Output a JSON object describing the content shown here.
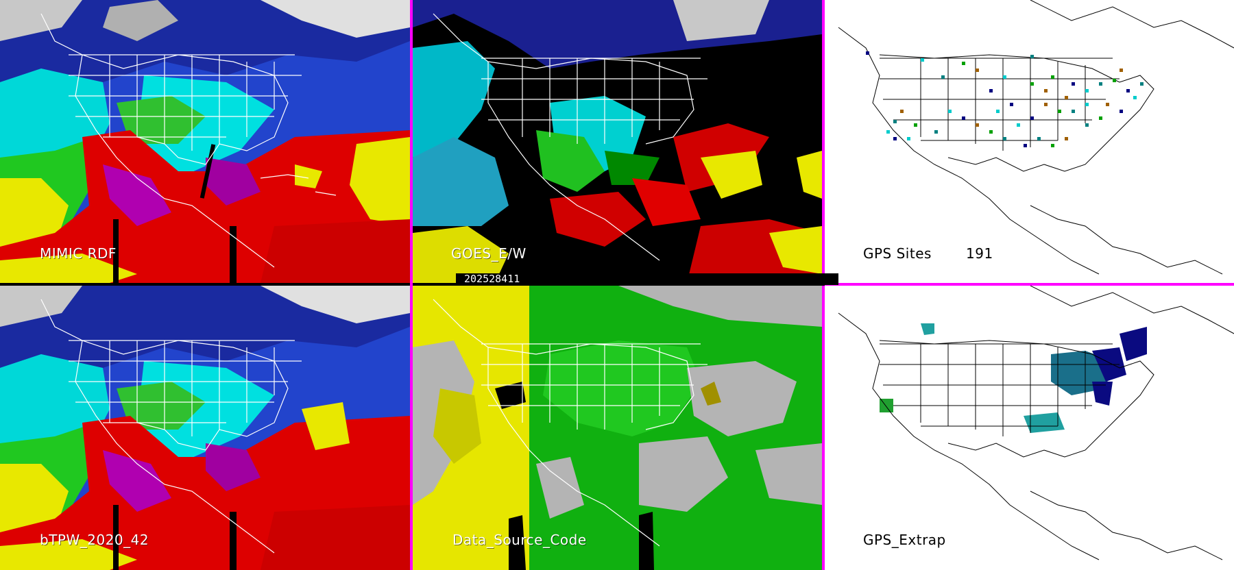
{
  "panels": {
    "top_left": {
      "label": "MIMIC RDF"
    },
    "top_middle": {
      "label": "GOES_E/W"
    },
    "top_right": {
      "label": "GPS Sites",
      "count": "191"
    },
    "bottom_left": {
      "label": "bTPW_2020_42"
    },
    "bottom_middle": {
      "label": "Data_Source_Code"
    },
    "bottom_right": {
      "label": "GPS_Extrap"
    }
  },
  "timestamp": "202528411",
  "colors": {
    "divider": "#ff00ff",
    "tpw_scale": [
      "#e8e8e8",
      "#9a9a9a",
      "#0a0a8a",
      "#1e3cc8",
      "#5a78ff",
      "#00e6e6",
      "#00c800",
      "#64e600",
      "#ffff00",
      "#dcdc28",
      "#e60000",
      "#b40000",
      "#c800c8"
    ],
    "source_satellite": "#00c800",
    "source_other": "#ffff00",
    "source_gap": "#b4b4b4",
    "gps_site_types": [
      "#000080",
      "#00cccc",
      "#008080",
      "#00a000",
      "#a06000"
    ]
  },
  "icons": {
    "map_outline": "north-america-basemap"
  }
}
